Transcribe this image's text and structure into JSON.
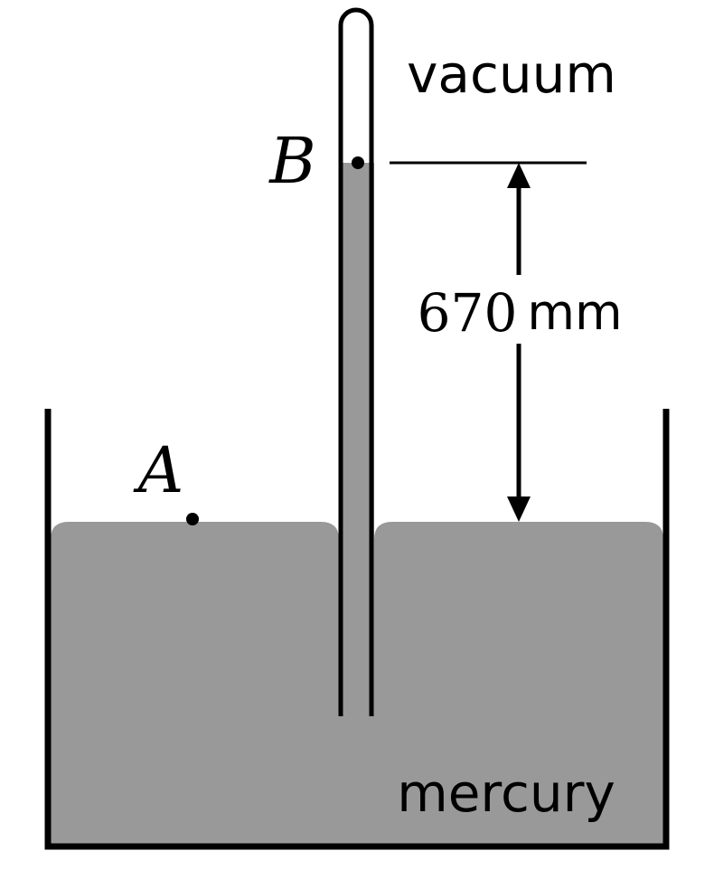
{
  "labels": {
    "vacuum": "vacuum",
    "mercury": "mercury",
    "point_a": "A",
    "point_b": "B",
    "height_value": "670",
    "height_unit": "mm"
  },
  "colors": {
    "mercury": "#999999",
    "ink": "#000000",
    "background": "#ffffff"
  }
}
